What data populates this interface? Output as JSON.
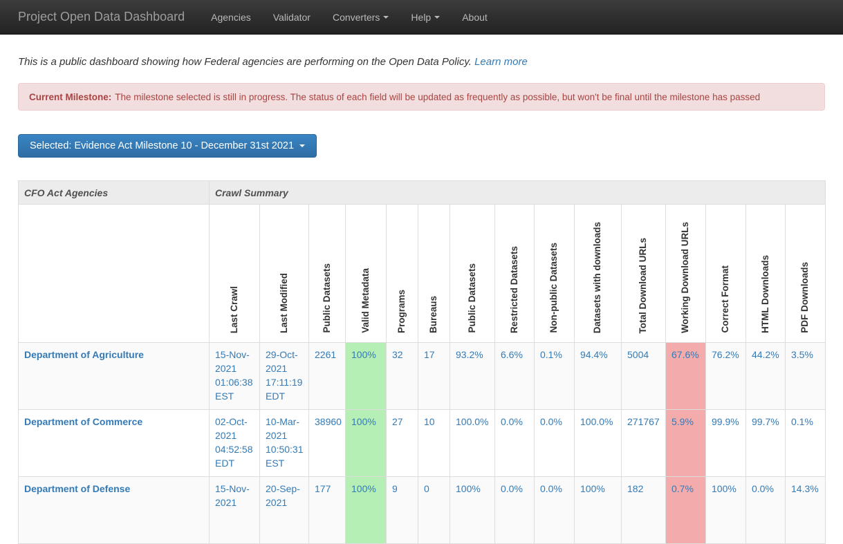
{
  "navbar": {
    "brand": "Project Open Data Dashboard",
    "items": [
      {
        "label": "Agencies",
        "dropdown": false
      },
      {
        "label": "Validator",
        "dropdown": false
      },
      {
        "label": "Converters",
        "dropdown": true
      },
      {
        "label": "Help",
        "dropdown": true
      },
      {
        "label": "About",
        "dropdown": false
      }
    ]
  },
  "intro": {
    "text": "This is a public dashboard showing how Federal agencies are performing on the Open Data Policy.",
    "link_label": "Learn more"
  },
  "alert": {
    "title": "Current Milestone:",
    "text": "The milestone selected is still in progress. The status of each field will be updated as frequently as possible, but won't be final until the milestone has passed"
  },
  "milestone_button": {
    "label": "Selected: Evidence Act Milestone 10 - December 31st 2021"
  },
  "table": {
    "group_headers": {
      "agencies": "CFO Act Agencies",
      "crawl": "Crawl Summary"
    },
    "columns": [
      "Last Crawl",
      "Last Modified",
      "Public Datasets",
      "Valid Metadata",
      "Programs",
      "Bureaus",
      "Public Datasets",
      "Restricted Datasets",
      "Non-public Datasets",
      "Datasets with downloads",
      "Total Download URLs",
      "Working Download URLs",
      "Correct Format",
      "HTML Downloads",
      "PDF Downloads"
    ],
    "rows": [
      {
        "agency": "Department of Agriculture",
        "cells": [
          {
            "text": "15-Nov-2021 01:06:38 EST"
          },
          {
            "text": "29-Oct-2021 17:11:19 EDT"
          },
          {
            "text": "2261"
          },
          {
            "text": "100%",
            "bg": "green"
          },
          {
            "text": "32"
          },
          {
            "text": "17"
          },
          {
            "text": "93.2%"
          },
          {
            "text": "6.6%"
          },
          {
            "text": "0.1%"
          },
          {
            "text": "94.4%"
          },
          {
            "text": "5004"
          },
          {
            "text": "67.6%",
            "bg": "red"
          },
          {
            "text": "76.2%"
          },
          {
            "text": "44.2%"
          },
          {
            "text": "3.5%"
          }
        ]
      },
      {
        "agency": "Department of Commerce",
        "cells": [
          {
            "text": "02-Oct-2021 04:52:58 EDT"
          },
          {
            "text": "10-Mar-2021 10:50:31 EST"
          },
          {
            "text": "38960"
          },
          {
            "text": "100%",
            "bg": "green"
          },
          {
            "text": "27"
          },
          {
            "text": "10"
          },
          {
            "text": "100.0%"
          },
          {
            "text": "0.0%"
          },
          {
            "text": "0.0%"
          },
          {
            "text": "100.0%"
          },
          {
            "text": "271767"
          },
          {
            "text": "5.9%",
            "bg": "red"
          },
          {
            "text": "99.9%"
          },
          {
            "text": "99.7%"
          },
          {
            "text": "0.1%"
          }
        ]
      },
      {
        "agency": "Department of Defense",
        "cells": [
          {
            "text": "15-Nov-2021"
          },
          {
            "text": "20-Sep-2021"
          },
          {
            "text": "177"
          },
          {
            "text": "100%",
            "bg": "green"
          },
          {
            "text": "9"
          },
          {
            "text": "0"
          },
          {
            "text": "100%"
          },
          {
            "text": "0.0%"
          },
          {
            "text": "0.0%"
          },
          {
            "text": "100%"
          },
          {
            "text": "182"
          },
          {
            "text": "0.7%",
            "bg": "red"
          },
          {
            "text": "100%"
          },
          {
            "text": "0.0%"
          },
          {
            "text": "14.3%"
          }
        ]
      }
    ]
  },
  "colors": {
    "accent_link": "#337ab7",
    "alert_bg": "#f2dede",
    "alert_text": "#a94442",
    "good_cell_bg": "#b5efb5",
    "bad_cell_bg": "#f4abab",
    "navbar_top": "#3c3c3c",
    "navbar_bottom": "#222222"
  }
}
